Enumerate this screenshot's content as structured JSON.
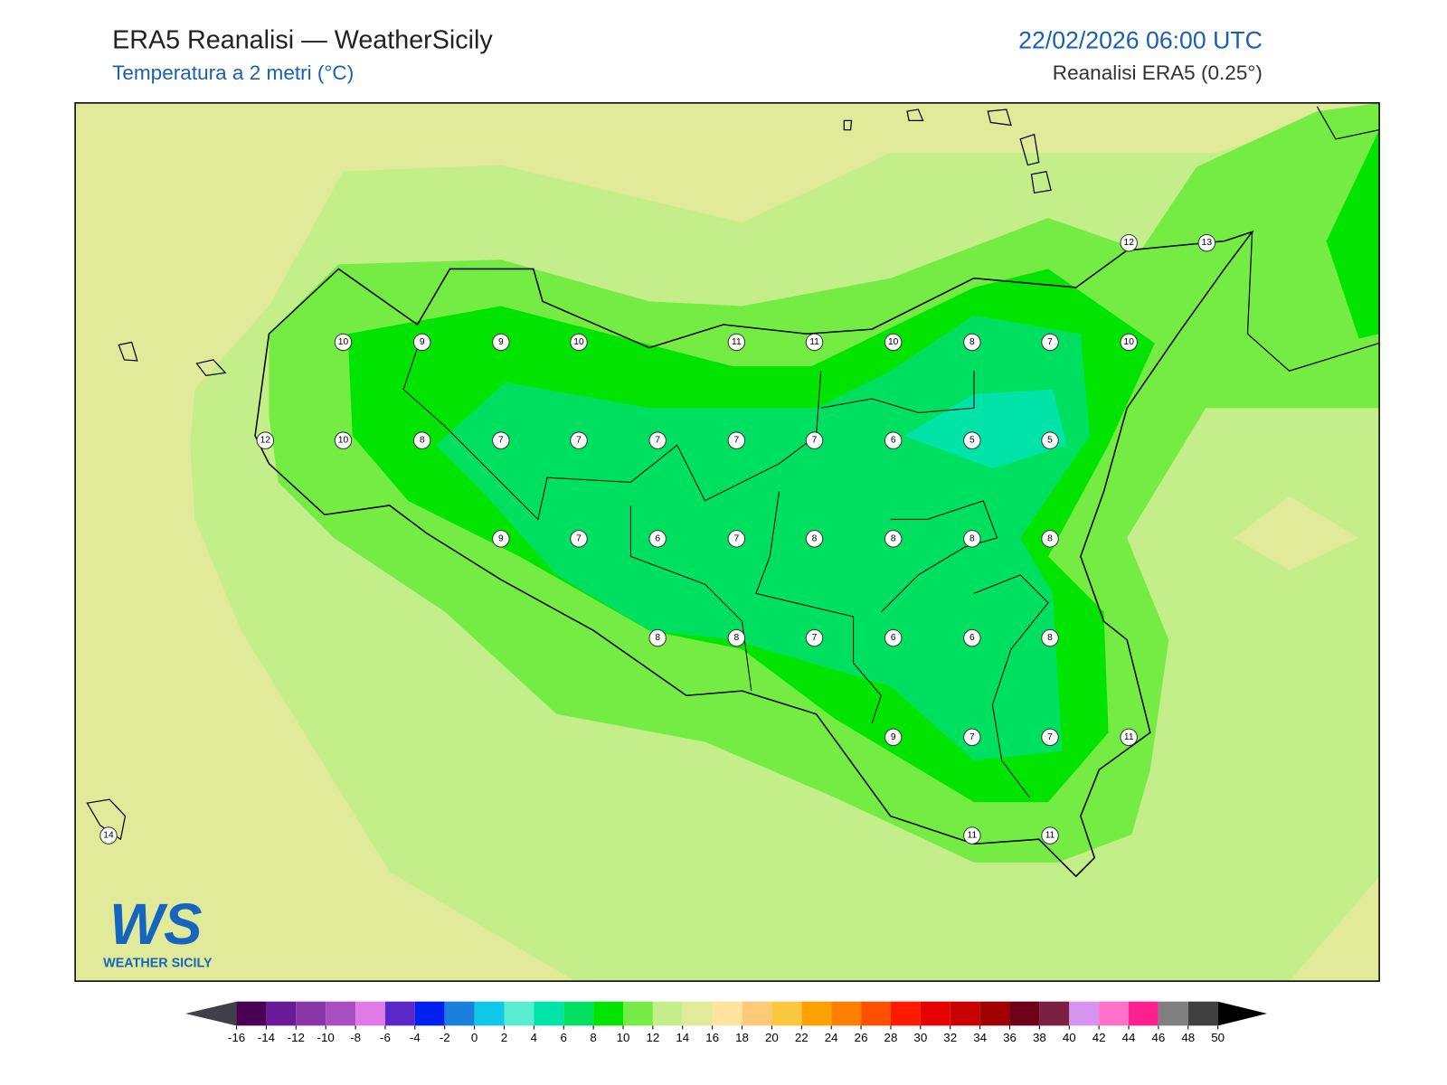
{
  "header": {
    "title": "ERA5 Reanalisi — WeatherSicily",
    "subtitle": "Temperatura a 2 metri (°C)",
    "datetime": "22/02/2026 06:00 UTC",
    "source": "Reanalisi ERA5 (0.25°)"
  },
  "stations": [
    12,
    13,
    10,
    9,
    9,
    10,
    11,
    11,
    10,
    8,
    7,
    10,
    12,
    10,
    8,
    7,
    7,
    7,
    7,
    7,
    6,
    5,
    5,
    9,
    7,
    6,
    7,
    8,
    8,
    8,
    8,
    8,
    8,
    7,
    6,
    6,
    8,
    9,
    7,
    7,
    11,
    14,
    11,
    11
  ],
  "colorbar": {
    "ticks": [
      -16,
      -14,
      -12,
      -10,
      -8,
      -6,
      -4,
      -2,
      0,
      2,
      4,
      6,
      8,
      10,
      12,
      14,
      16,
      18,
      20,
      22,
      24,
      26,
      28,
      30,
      32,
      34,
      36,
      38,
      40,
      42,
      44,
      46,
      48,
      50
    ],
    "colors": [
      "#4a0055",
      "#6a1a96",
      "#8a35a8",
      "#a94ec0",
      "#e07ae8",
      "#5a28c8",
      "#0020f0",
      "#1a80dc",
      "#10c8e8",
      "#5aeed0",
      "#00e4aa",
      "#00e060",
      "#00e400",
      "#74ec44",
      "#c4ee8a",
      "#e0ea98",
      "#ffe4a0",
      "#fcca78",
      "#fcc840",
      "#ffa200",
      "#ff8000",
      "#ff5000",
      "#ff1a00",
      "#e60000",
      "#c80000",
      "#a00000",
      "#6e0018",
      "#7a2040",
      "#d494f0",
      "#ff70c8",
      "#ff2090",
      "#808080",
      "#404040"
    ],
    "under_color": "#404048",
    "over_color": "#000000"
  },
  "logo": {
    "mark": "WS",
    "text": "WEATHER SICILY"
  }
}
